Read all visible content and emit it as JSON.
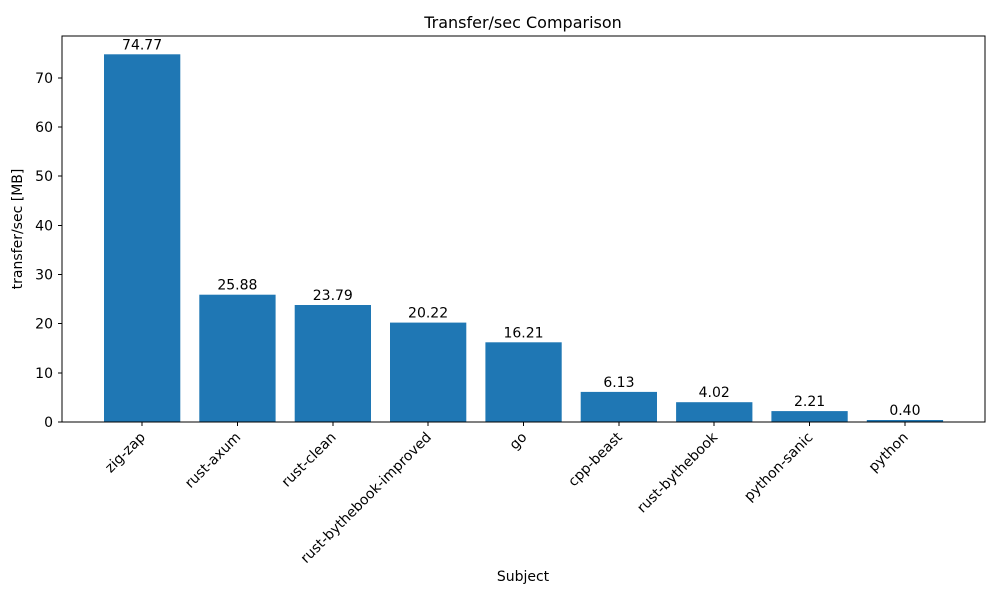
{
  "chart_data": {
    "type": "bar",
    "title": "Transfer/sec Comparison",
    "xlabel": "Subject",
    "ylabel": "transfer/sec [MB]",
    "categories": [
      "zig-zap",
      "rust-axum",
      "rust-clean",
      "rust-bythebook-improved",
      "go",
      "cpp-beast",
      "rust-bythebook",
      "python-sanic",
      "python"
    ],
    "values": [
      74.77,
      25.88,
      23.79,
      20.22,
      16.21,
      6.13,
      4.02,
      2.21,
      0.4
    ],
    "value_labels": [
      "74.77",
      "25.88",
      "23.79",
      "20.22",
      "16.21",
      "6.13",
      "4.02",
      "2.21",
      "0.40"
    ],
    "yticks": [
      0,
      10,
      20,
      30,
      40,
      50,
      60,
      70
    ],
    "ylim": [
      0,
      78.5
    ],
    "bar_color": "#1f77b4",
    "axis_color": "#000000",
    "grid": false,
    "legend": null,
    "x_tick_rotation_deg": 45
  }
}
